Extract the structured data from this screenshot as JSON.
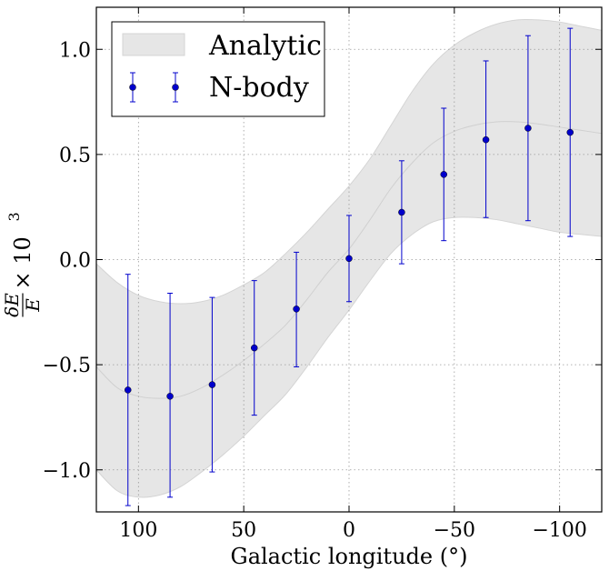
{
  "chart_data": {
    "type": "scatter",
    "xlabel": "Galactic longitude (°)",
    "ylabel": "δE/E × 10³",
    "ylabel_parts": {
      "num": "δE",
      "den": "E",
      "times": "× 10",
      "exp": "3"
    },
    "xlim": [
      120,
      -120
    ],
    "ylim": [
      -1.2,
      1.2
    ],
    "x_reversed": true,
    "grid": true,
    "legend_position": "upper-left",
    "x_ticks": [
      100,
      50,
      0,
      -50,
      -100
    ],
    "x_tick_labels": [
      "100",
      "50",
      "0",
      "−50",
      "−100"
    ],
    "y_ticks": [
      1.0,
      0.5,
      0.0,
      -0.5,
      -1.0
    ],
    "y_tick_labels": [
      "1.0",
      "0.5",
      "0.0",
      "−0.5",
      "−1.0"
    ],
    "series": [
      {
        "name": "Analytic",
        "kind": "band",
        "color": "#e6e6e6",
        "edge_color": "#d4d4d4",
        "x": [
          120,
          110,
          100,
          90,
          80,
          70,
          60,
          50,
          40,
          30,
          20,
          10,
          0,
          -10,
          -20,
          -30,
          -40,
          -50,
          -60,
          -70,
          -80,
          -90,
          -100,
          -110,
          -120
        ],
        "lower": [
          -1.0,
          -1.1,
          -1.13,
          -1.12,
          -1.08,
          -1.01,
          -0.93,
          -0.84,
          -0.74,
          -0.64,
          -0.51,
          -0.37,
          -0.24,
          -0.1,
          0.03,
          0.12,
          0.18,
          0.2,
          0.2,
          0.19,
          0.17,
          0.15,
          0.13,
          0.12,
          0.11
        ],
        "upper": [
          -0.02,
          -0.11,
          -0.17,
          -0.2,
          -0.21,
          -0.2,
          -0.17,
          -0.12,
          -0.06,
          0.03,
          0.13,
          0.24,
          0.35,
          0.48,
          0.64,
          0.8,
          0.93,
          1.02,
          1.08,
          1.12,
          1.14,
          1.14,
          1.13,
          1.11,
          1.09
        ],
        "center": [
          -0.51,
          -0.61,
          -0.65,
          -0.66,
          -0.65,
          -0.61,
          -0.55,
          -0.48,
          -0.4,
          -0.31,
          -0.19,
          -0.06,
          0.05,
          0.19,
          0.34,
          0.46,
          0.555,
          0.61,
          0.64,
          0.655,
          0.655,
          0.645,
          0.63,
          0.615,
          0.6
        ]
      },
      {
        "name": "N-body",
        "kind": "errorbar",
        "color": "#0000cc",
        "x": [
          105,
          85,
          65,
          45,
          25,
          0,
          -25,
          -45,
          -65,
          -85,
          -105
        ],
        "y": [
          -0.62,
          -0.65,
          -0.595,
          -0.42,
          -0.235,
          0.005,
          0.225,
          0.405,
          0.57,
          0.625,
          0.605
        ],
        "yerr_low": [
          -1.17,
          -1.13,
          -1.01,
          -0.74,
          -0.51,
          -0.2,
          -0.02,
          0.09,
          0.2,
          0.185,
          0.11
        ],
        "yerr_high": [
          -0.07,
          -0.16,
          -0.18,
          -0.1,
          0.035,
          0.21,
          0.47,
          0.72,
          0.945,
          1.065,
          1.1
        ]
      }
    ]
  }
}
